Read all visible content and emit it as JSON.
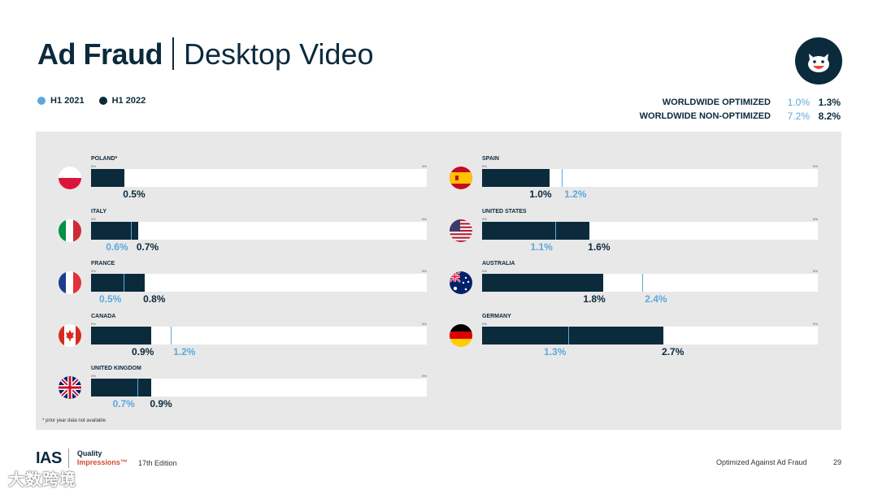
{
  "title": {
    "bold": "Ad Fraud",
    "light": "Desktop Video"
  },
  "legend": [
    {
      "label": "H1 2021",
      "color": "#5aa9dc"
    },
    {
      "label": "H1 2022",
      "color": "#0b2a3c"
    }
  ],
  "worldwide": [
    {
      "label": "WORLDWIDE OPTIMIZED",
      "h1_2021": "1.0%",
      "h1_2022": "1.3%"
    },
    {
      "label": "WORLDWIDE NON-OPTIMIZED",
      "h1_2021": "7.2%",
      "h1_2022": "8.2%"
    }
  ],
  "footnote": "* prior year data not available",
  "footer": {
    "brand": "IAS",
    "quality": "Quality",
    "impressions": "Impressions™",
    "edition": "17th Edition",
    "section": "Optimized Against Ad Fraud",
    "page": "29"
  },
  "watermark": "大数跨境",
  "colors": {
    "h1_2021": "#5aa9dc",
    "h1_2022": "#0b2a3c",
    "panel": "#e8e8e8"
  },
  "chart_data": {
    "type": "bar",
    "ylim": [
      0,
      5
    ],
    "axis_min_label": "0%",
    "axis_max_label": "5%",
    "series": [
      {
        "name": "H1 2021",
        "color": "#5aa9dc"
      },
      {
        "name": "H1 2022",
        "color": "#0b2a3c"
      }
    ],
    "countries": [
      {
        "name": "POLAND*",
        "flag": "poland",
        "h1_2022": 0.5,
        "h1_2021": null,
        "label_2022": "0.5%",
        "label_2021": ""
      },
      {
        "name": "ITALY",
        "flag": "italy",
        "h1_2022": 0.7,
        "h1_2021": 0.6,
        "label_2022": "0.7%",
        "label_2021": "0.6%"
      },
      {
        "name": "FRANCE",
        "flag": "france",
        "h1_2022": 0.8,
        "h1_2021": 0.5,
        "label_2022": "0.8%",
        "label_2021": "0.5%"
      },
      {
        "name": "CANADA",
        "flag": "canada",
        "h1_2022": 0.9,
        "h1_2021": 1.2,
        "label_2022": "0.9%",
        "label_2021": "1.2%"
      },
      {
        "name": "UNITED KINGDOM",
        "flag": "uk",
        "h1_2022": 0.9,
        "h1_2021": 0.7,
        "label_2022": "0.9%",
        "label_2021": "0.7%"
      },
      {
        "name": "SPAIN",
        "flag": "spain",
        "h1_2022": 1.0,
        "h1_2021": 1.2,
        "label_2022": "1.0%",
        "label_2021": "1.2%"
      },
      {
        "name": "UNITED STATES",
        "flag": "usa",
        "h1_2022": 1.6,
        "h1_2021": 1.1,
        "label_2022": "1.6%",
        "label_2021": "1.1%"
      },
      {
        "name": "AUSTRALIA",
        "flag": "australia",
        "h1_2022": 1.8,
        "h1_2021": 2.4,
        "label_2022": "1.8%",
        "label_2021": "2.4%"
      },
      {
        "name": "GERMANY",
        "flag": "germany",
        "h1_2022": 2.7,
        "h1_2021": 1.3,
        "label_2022": "2.7%",
        "label_2021": "1.3%"
      }
    ]
  }
}
